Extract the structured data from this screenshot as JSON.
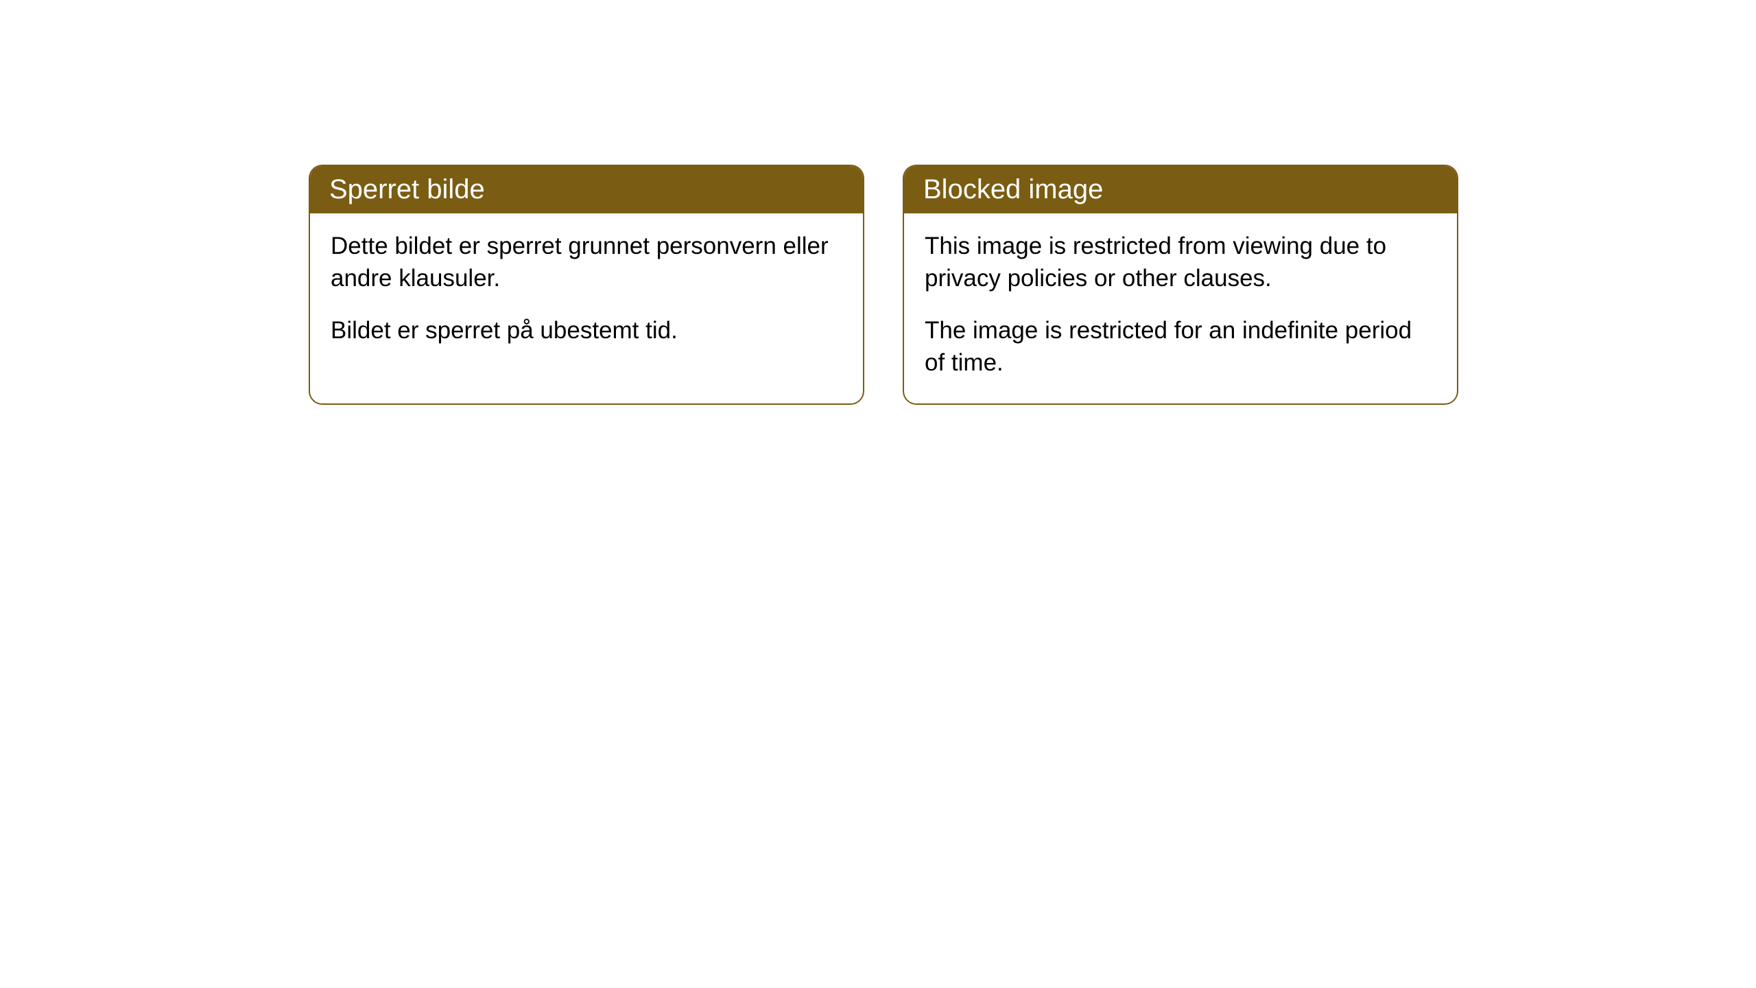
{
  "cards": [
    {
      "title": "Sperret bilde",
      "paragraph1": "Dette bildet er sperret grunnet personvern eller andre klausuler.",
      "paragraph2": "Bildet er sperret på ubestemt tid."
    },
    {
      "title": "Blocked image",
      "paragraph1": "This image is restricted from viewing due to privacy policies or other clauses.",
      "paragraph2": "The image is restricted for an indefinite period of time."
    }
  ],
  "styling": {
    "header_background": "#7a5d13",
    "header_text_color": "#ffffff",
    "border_color": "#7a5d13",
    "body_background": "#ffffff",
    "body_text_color": "#000000",
    "border_radius": 20,
    "title_fontsize": 40,
    "body_fontsize": 35
  }
}
